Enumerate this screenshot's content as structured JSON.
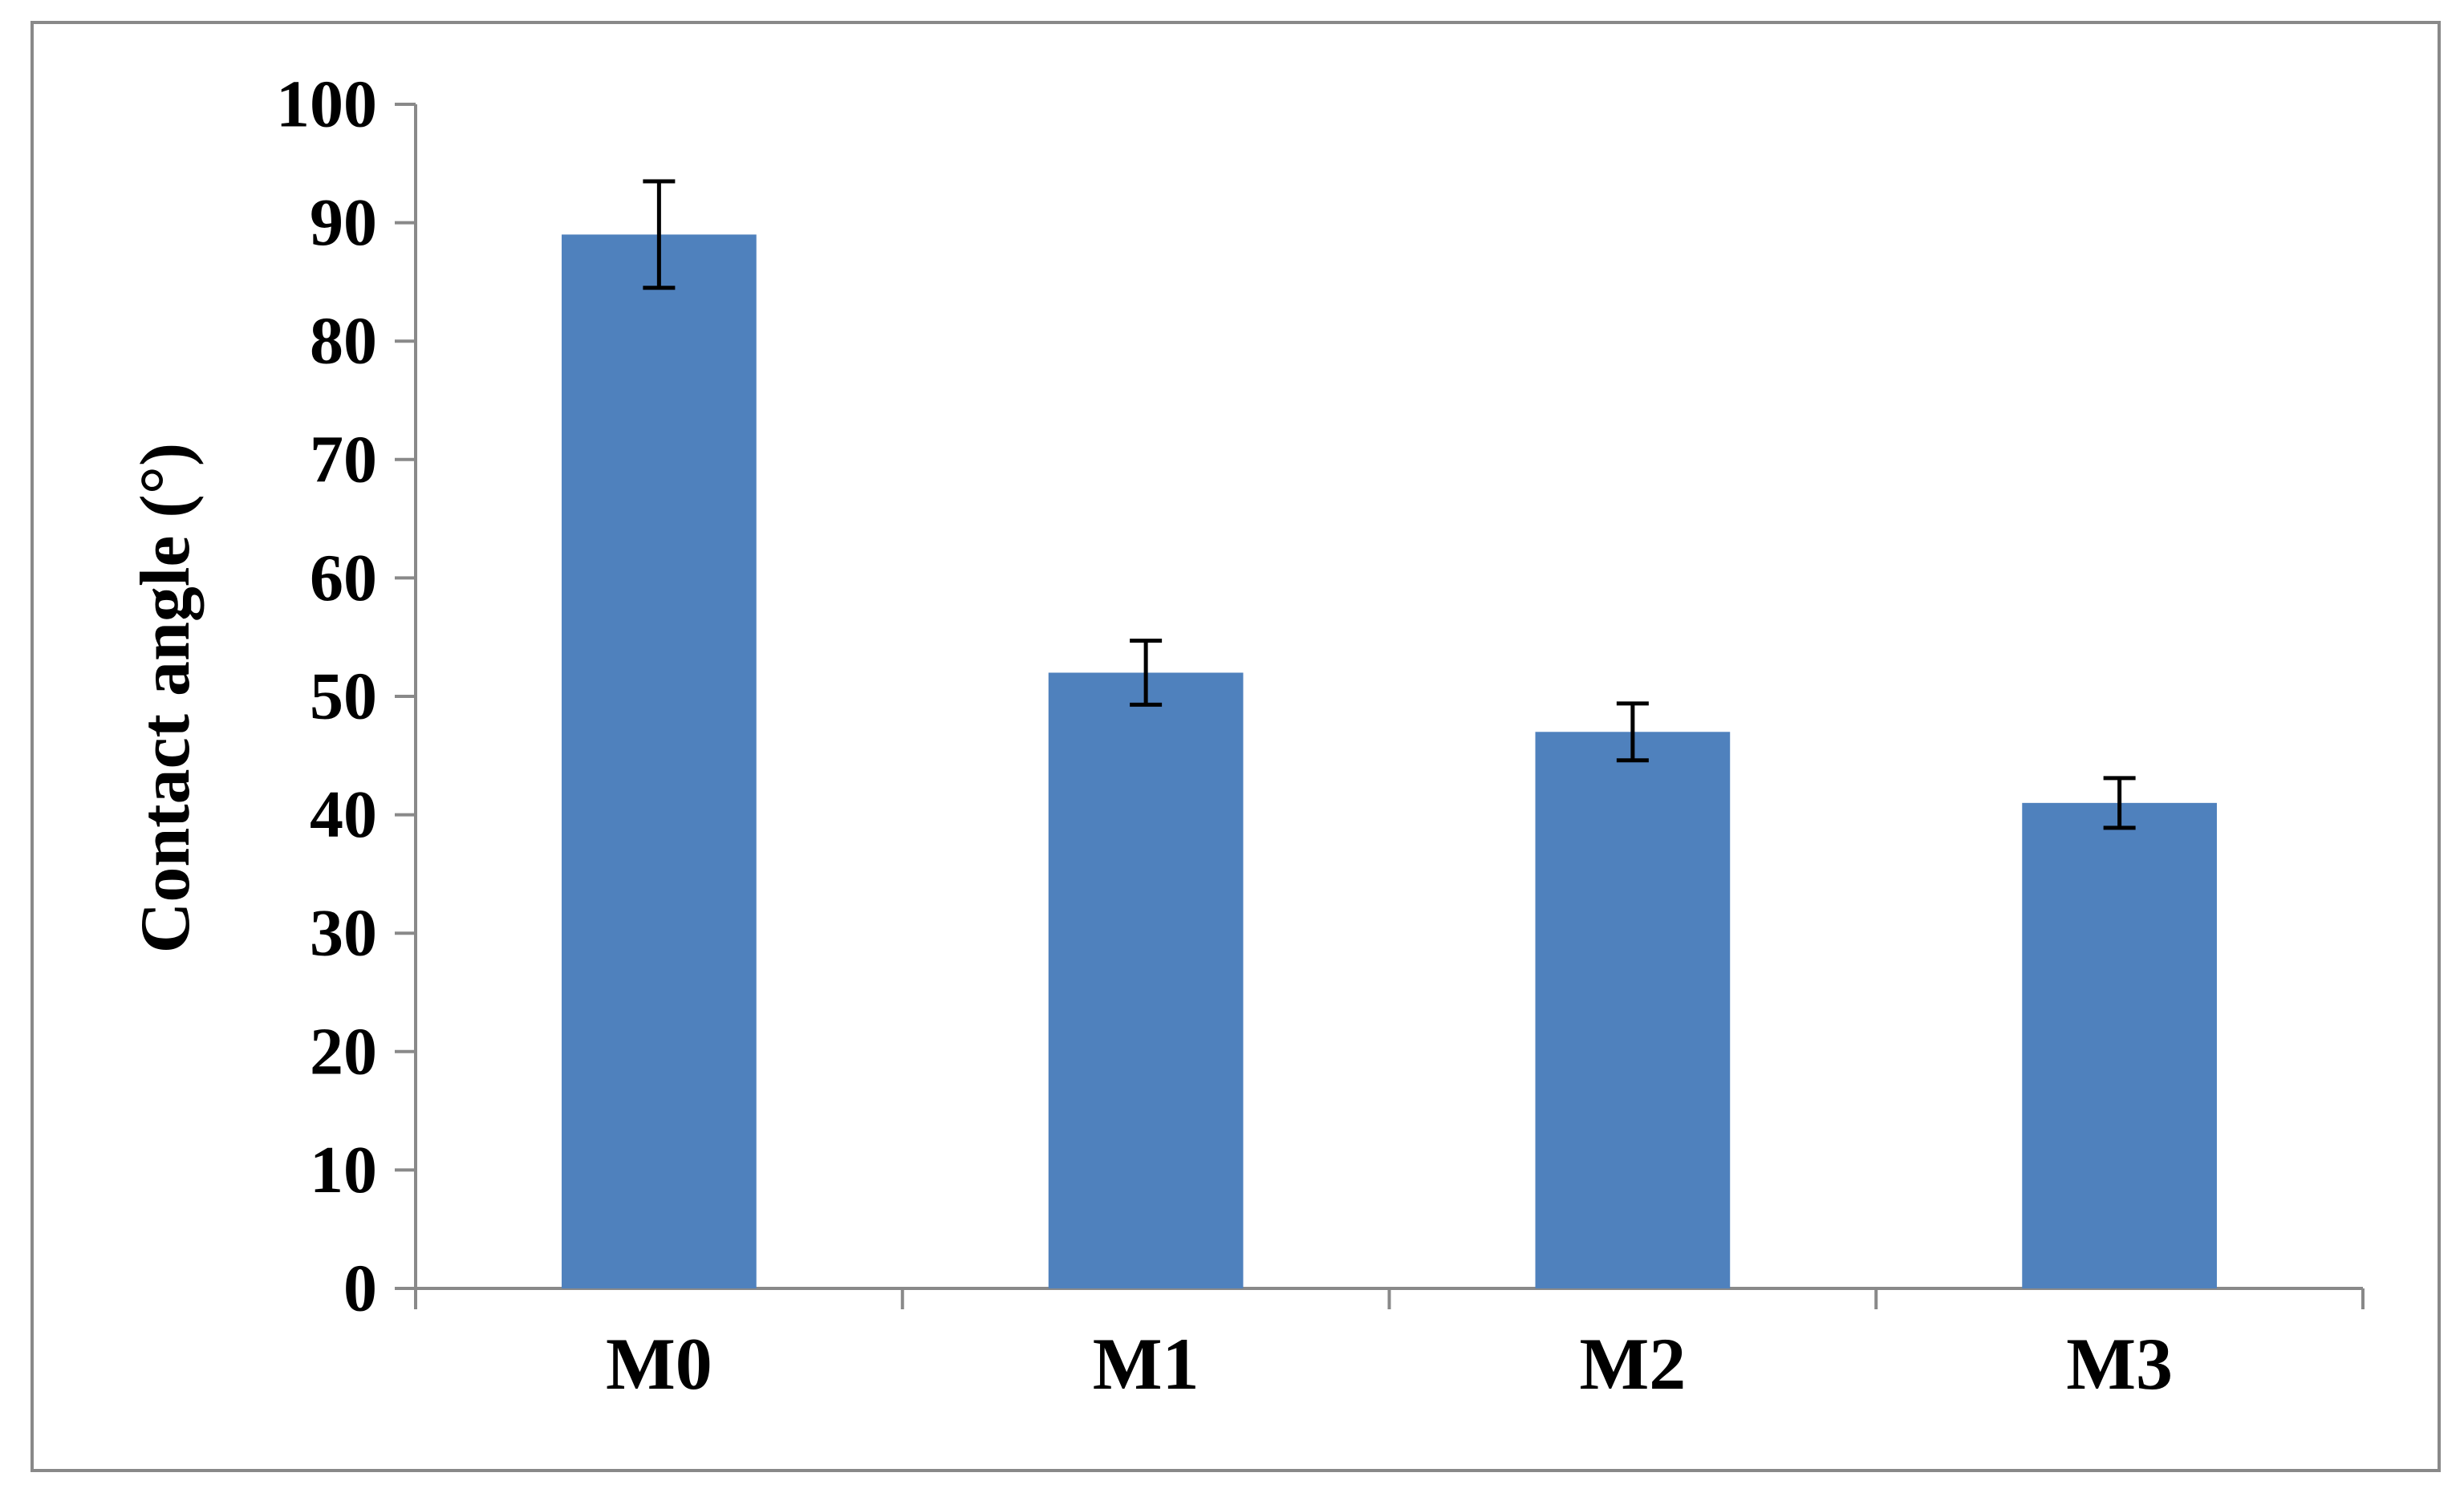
{
  "chart_data": {
    "type": "bar",
    "categories": [
      "M0",
      "M1",
      "M2",
      "M3"
    ],
    "values": [
      89,
      52,
      47,
      41
    ],
    "errors": [
      4.5,
      2.7,
      2.4,
      2.1
    ],
    "title": "",
    "xlabel": "",
    "ylabel": "Contact angle (°)",
    "ylim": [
      0,
      100
    ],
    "yticks": [
      "0",
      "10",
      "20",
      "30",
      "40",
      "50",
      "60",
      "70",
      "80",
      "90",
      "100"
    ],
    "grid": false,
    "legend": "none",
    "colors": {
      "bar": "#4f81bd",
      "axis": "#898989",
      "frame": "#898989",
      "error_bar": "#000000",
      "text": "#000000"
    }
  }
}
